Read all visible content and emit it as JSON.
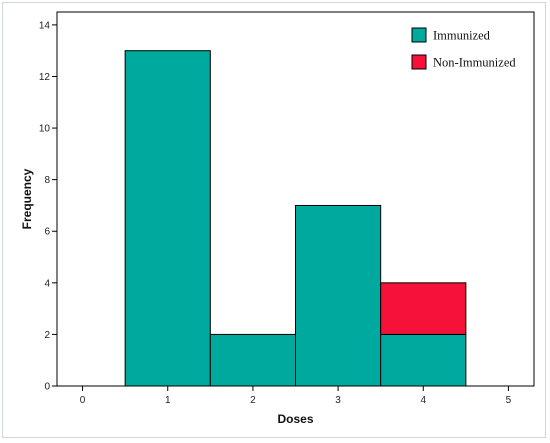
{
  "chart_data": {
    "type": "bar",
    "stacked": true,
    "x": [
      1,
      2,
      3,
      4
    ],
    "xlabel": "Doses",
    "ylabel": "Frequency",
    "xlim": [
      -0.3,
      5.3
    ],
    "ylim": [
      0,
      14.5
    ],
    "xticks": [
      0,
      1,
      2,
      3,
      4,
      5
    ],
    "yticks": [
      0,
      2,
      4,
      6,
      8,
      10,
      12,
      14
    ],
    "series": [
      {
        "name": "Immunized",
        "color": "#00a99d",
        "values": [
          13,
          2,
          7,
          2
        ]
      },
      {
        "name": "Non-Immunized",
        "color": "#f5113a",
        "values": [
          0,
          0,
          0,
          2
        ]
      }
    ],
    "legend_position": "top-right",
    "grid": false
  }
}
